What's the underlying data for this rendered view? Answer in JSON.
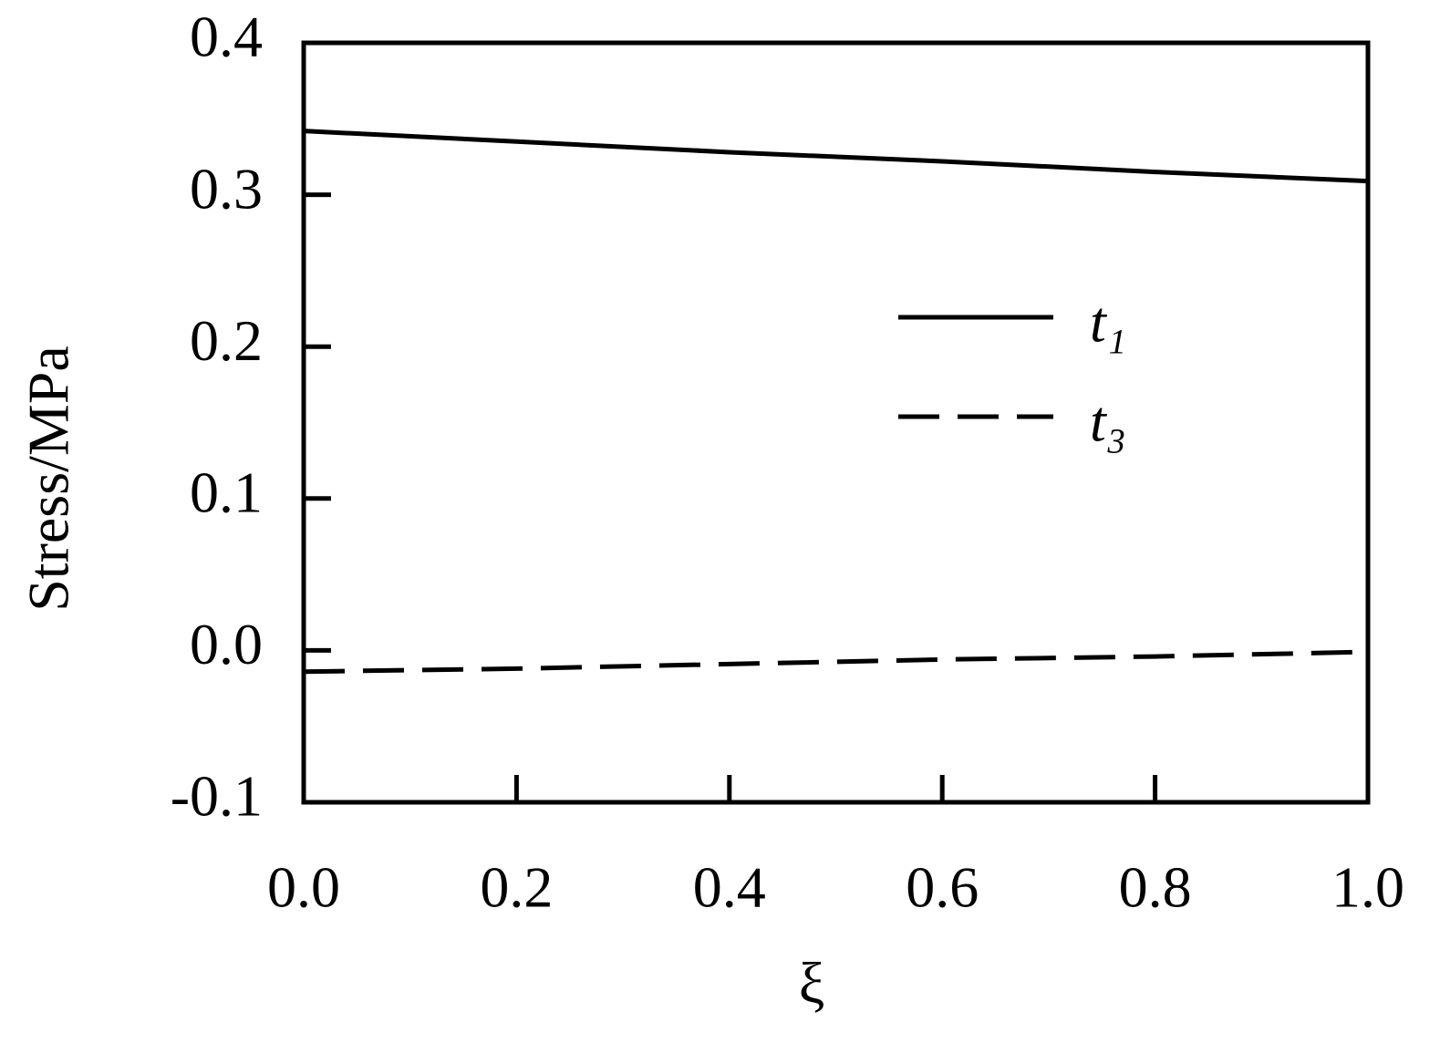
{
  "chart_data": {
    "type": "line",
    "x_label": "ξ",
    "y_label": "Stress/MPa",
    "x": [
      0,
      0.2,
      0.4,
      0.6,
      0.8,
      1
    ],
    "series": [
      {
        "name": "t₁",
        "color": "#000000",
        "dash": "solid",
        "values": [
          0.342,
          0.335,
          0.328,
          0.322,
          0.315,
          0.309
        ]
      },
      {
        "name": "t₃",
        "color": "#000000",
        "dash": "dashed",
        "values": [
          -0.014,
          -0.012,
          -0.009,
          -0.006,
          -0.004,
          -0.001
        ]
      }
    ],
    "xlim": [
      0,
      1
    ],
    "xticks": [
      {
        "value": 0,
        "label": "0.0"
      },
      0.2,
      0.4,
      0.6,
      0.8,
      {
        "value": 1,
        "label": "1.0"
      }
    ],
    "ylim": [
      -0.1,
      0.4
    ],
    "yticks": [
      -0.1,
      {
        "value": 0,
        "label": "0.0"
      },
      0.1,
      0.2,
      0.3,
      0.4
    ],
    "grid": false,
    "legend": "right"
  }
}
